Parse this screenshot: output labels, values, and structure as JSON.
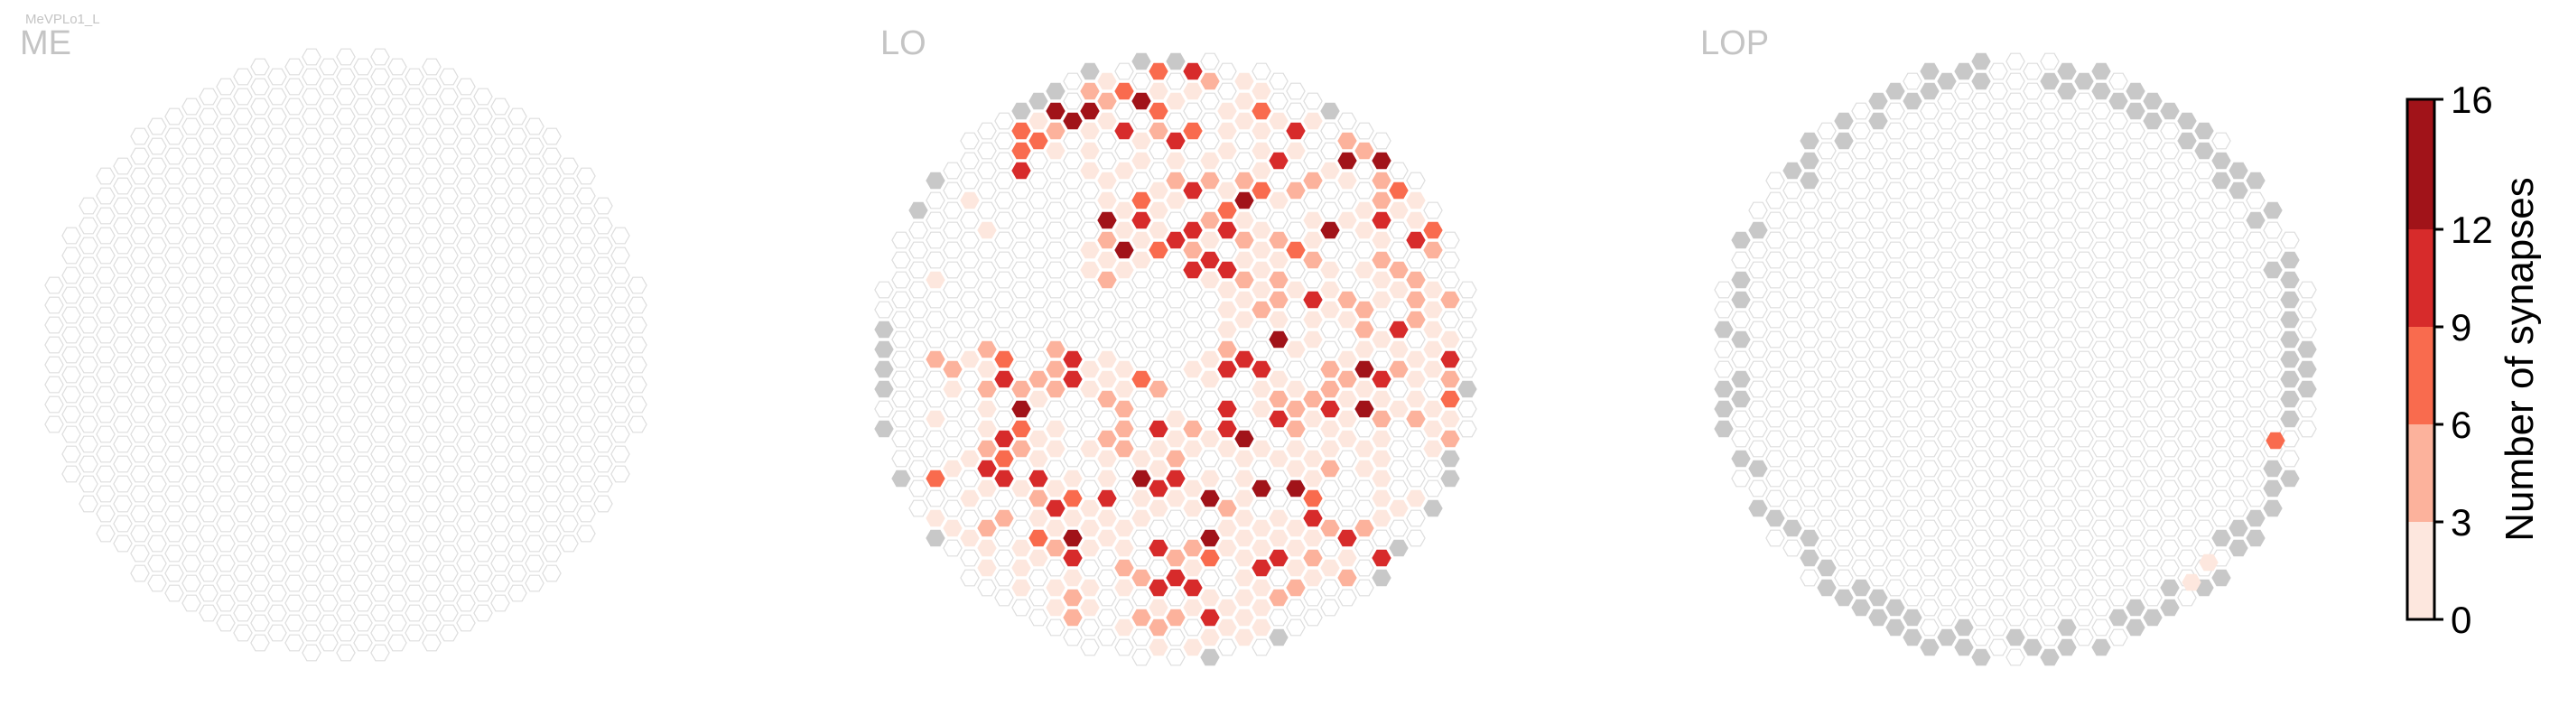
{
  "figure": {
    "neuron_label": "MeVPLo1_L"
  },
  "panels": [
    {
      "name": "ME",
      "label": "ME"
    },
    {
      "name": "LO",
      "label": "LO"
    },
    {
      "name": "LOP",
      "label": "LOP"
    }
  ],
  "colorbar": {
    "label": "Number of synapses",
    "ticks": [
      "0",
      "3",
      "6",
      "9",
      "12",
      "16"
    ],
    "bins": [
      {
        "from": 0,
        "to": 3,
        "color": "#fde7de"
      },
      {
        "from": 3,
        "to": 6,
        "color": "#fcb29c"
      },
      {
        "from": 6,
        "to": 9,
        "color": "#f96b4e"
      },
      {
        "from": 9,
        "to": 12,
        "color": "#d72b2b"
      },
      {
        "from": 12,
        "to": 16,
        "color": "#a11319"
      }
    ]
  },
  "colors": {
    "empty_column_stroke": "#dddddd",
    "no_data_gray": "#c8c8c8",
    "panel_label": "#c4c4c4"
  },
  "chart_data": [
    {
      "type": "heatmap",
      "title": "ME",
      "description_of_values": "synapse counts per hexagonal column; all columns empty",
      "cells": []
    },
    {
      "type": "heatmap",
      "title": "LO",
      "value_range": [
        0,
        16
      ],
      "cells_by_bin": {
        "0-3": 180,
        "3-6": 70,
        "6-9": 20,
        "9-12": 38,
        "12-16": 12
      }
    },
    {
      "type": "heatmap",
      "title": "LOP",
      "value_range": [
        0,
        16
      ],
      "cells_by_bin": {
        "0-3": 3,
        "3-6": 0,
        "6-9": 1,
        "9-12": 0,
        "12-16": 0
      }
    }
  ]
}
